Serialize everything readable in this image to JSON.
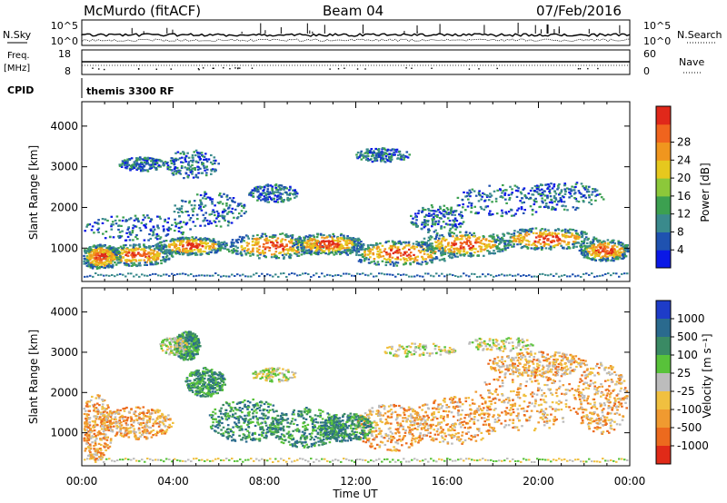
{
  "header": {
    "station": "McMurdo (fitACF)",
    "beam": "Beam 04",
    "date": "07/Feb/2016"
  },
  "status_panels": {
    "nsky_label": "N.Sky",
    "nsky_ticks": [
      "10^5",
      "10^0"
    ],
    "nsearch_label": "N.Search",
    "nsearch_ticks": [
      "10^5",
      "10^0"
    ],
    "freq_label_1": "Freq.",
    "freq_label_2": "[MHz]",
    "freq_ticks": [
      "18",
      "8"
    ],
    "nave_label": "Nave",
    "nave_ticks": [
      "60",
      "0"
    ],
    "cpid_label": "CPID",
    "cpid_value": "themis 3300 RF"
  },
  "chart_data": [
    {
      "type": "heatmap",
      "title": "",
      "xlabel": "Time UT",
      "ylabel": "Slant Range [km]",
      "x_ticks": [
        "00:00",
        "04:00",
        "08:00",
        "12:00",
        "16:00",
        "20:00",
        "00:00"
      ],
      "y_ticks": [
        1000,
        2000,
        3000,
        4000
      ],
      "ylim": [
        180,
        4600
      ],
      "colorbar": {
        "label": "Power [dB]",
        "ticks": [
          "4",
          "8",
          "12",
          "16",
          "20",
          "24",
          "28"
        ],
        "colors": [
          "#0a18e6",
          "#1f52b0",
          "#3a8a8c",
          "#3ca050",
          "#8cc83a",
          "#e6c81e",
          "#f0961e",
          "#f0641e",
          "#e0281a"
        ]
      }
    },
    {
      "type": "heatmap",
      "title": "",
      "xlabel": "Time UT",
      "ylabel": "Slant Range [km]",
      "x_ticks": [
        "00:00",
        "04:00",
        "08:00",
        "12:00",
        "16:00",
        "20:00",
        "00:00"
      ],
      "y_ticks": [
        1000,
        2000,
        3000,
        4000
      ],
      "ylim": [
        180,
        4600
      ],
      "colorbar": {
        "label": "Velocity [m s⁻¹]",
        "ticks": [
          "1000",
          "500",
          "100",
          "25",
          "-25",
          "-100",
          "-500",
          "-1000"
        ],
        "colors": [
          "#1e3cc8",
          "#2a6a8e",
          "#3a8a64",
          "#58c23a",
          "#bcbcbc",
          "#f0c040",
          "#f09a30",
          "#ec6a1e",
          "#e02a18"
        ]
      }
    }
  ]
}
